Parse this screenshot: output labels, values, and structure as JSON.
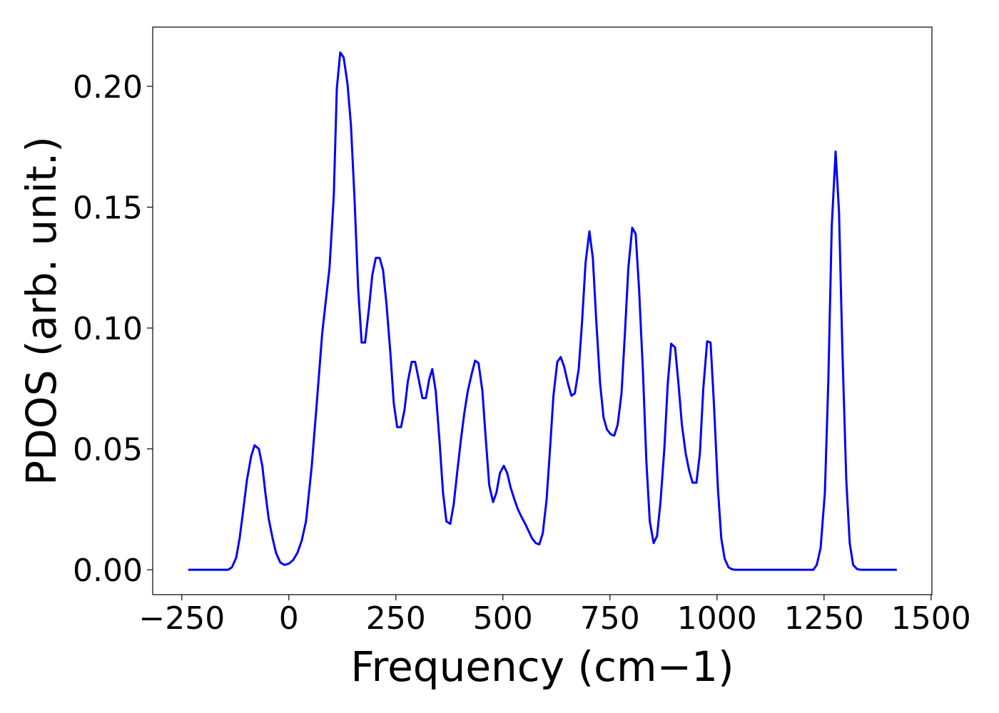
{
  "chart_data": {
    "type": "line",
    "xlabel": "Frequency (cm−1)",
    "ylabel": "PDOS (arb. unit.)",
    "color": "#0000ff",
    "x": [
      -235,
      -142,
      -133,
      -123,
      -115,
      -107,
      -98,
      -88,
      -80,
      -70,
      -62,
      -55,
      -47,
      -38,
      -30,
      -20,
      -10,
      0,
      10,
      20,
      30,
      40,
      53,
      63,
      78,
      95,
      105,
      112,
      120,
      128,
      137,
      145,
      153,
      162,
      170,
      178,
      187,
      195,
      203,
      212,
      220,
      228,
      237,
      245,
      253,
      262,
      270,
      278,
      287,
      295,
      303,
      312,
      320,
      328,
      335,
      343,
      352,
      360,
      368,
      377,
      385,
      393,
      402,
      410,
      418,
      427,
      435,
      443,
      452,
      460,
      468,
      477,
      485,
      493,
      502,
      510,
      518,
      527,
      535,
      543,
      552,
      560,
      568,
      577,
      585,
      593,
      602,
      610,
      618,
      627,
      635,
      643,
      652,
      660,
      668,
      677,
      685,
      693,
      702,
      710,
      718,
      727,
      735,
      743,
      752,
      760,
      768,
      777,
      785,
      793,
      802,
      810,
      818,
      827,
      835,
      843,
      852,
      860,
      868,
      877,
      885,
      893,
      902,
      910,
      918,
      927,
      935,
      943,
      952,
      960,
      968,
      977,
      985,
      993,
      1002,
      1010,
      1018,
      1027,
      1035,
      1043,
      1225,
      1233,
      1242,
      1252,
      1260,
      1268,
      1277,
      1285,
      1293,
      1302,
      1310,
      1318,
      1327,
      1335,
      1420
    ],
    "values": [
      0,
      0,
      0.001,
      0.005,
      0.013,
      0.024,
      0.037,
      0.047,
      0.0515,
      0.05,
      0.043,
      0.032,
      0.021,
      0.013,
      0.007,
      0.003,
      0.002,
      0.0025,
      0.004,
      0.007,
      0.012,
      0.02,
      0.042,
      0.064,
      0.098,
      0.125,
      0.155,
      0.199,
      0.214,
      0.212,
      0.201,
      0.184,
      0.155,
      0.116,
      0.094,
      0.094,
      0.108,
      0.122,
      0.129,
      0.129,
      0.124,
      0.11,
      0.09,
      0.069,
      0.059,
      0.059,
      0.066,
      0.078,
      0.086,
      0.086,
      0.079,
      0.071,
      0.071,
      0.079,
      0.083,
      0.074,
      0.053,
      0.032,
      0.02,
      0.019,
      0.027,
      0.04,
      0.054,
      0.065,
      0.074,
      0.081,
      0.0865,
      0.0855,
      0.074,
      0.054,
      0.035,
      0.028,
      0.032,
      0.04,
      0.043,
      0.04,
      0.034,
      0.029,
      0.025,
      0.022,
      0.019,
      0.016,
      0.013,
      0.011,
      0.0105,
      0.015,
      0.029,
      0.05,
      0.072,
      0.086,
      0.088,
      0.084,
      0.077,
      0.072,
      0.073,
      0.083,
      0.103,
      0.127,
      0.14,
      0.129,
      0.103,
      0.077,
      0.063,
      0.058,
      0.056,
      0.0555,
      0.06,
      0.073,
      0.098,
      0.125,
      0.1415,
      0.139,
      0.116,
      0.082,
      0.045,
      0.02,
      0.011,
      0.014,
      0.028,
      0.05,
      0.077,
      0.0935,
      0.092,
      0.077,
      0.06,
      0.048,
      0.041,
      0.036,
      0.036,
      0.048,
      0.075,
      0.0945,
      0.094,
      0.068,
      0.034,
      0.013,
      0.0045,
      0.001,
      0.0002,
      0,
      0,
      0.002,
      0.009,
      0.032,
      0.078,
      0.142,
      0.173,
      0.148,
      0.09,
      0.037,
      0.011,
      0.002,
      0.0003,
      0,
      0
    ],
    "xlim": [
      -318,
      1502
    ],
    "ylim": [
      -0.0103,
      0.2245
    ],
    "xticks": [
      {
        "value": -250,
        "label": "−250"
      },
      0,
      250,
      500,
      750,
      1000,
      1250,
      1500
    ],
    "yticks": [
      {
        "value": 0,
        "label": "0.00"
      },
      {
        "value": 0.05,
        "label": "0.05"
      },
      {
        "value": 0.1,
        "label": "0.10"
      },
      {
        "value": 0.15,
        "label": "0.15"
      },
      {
        "value": 0.2,
        "label": "0.20"
      }
    ]
  }
}
